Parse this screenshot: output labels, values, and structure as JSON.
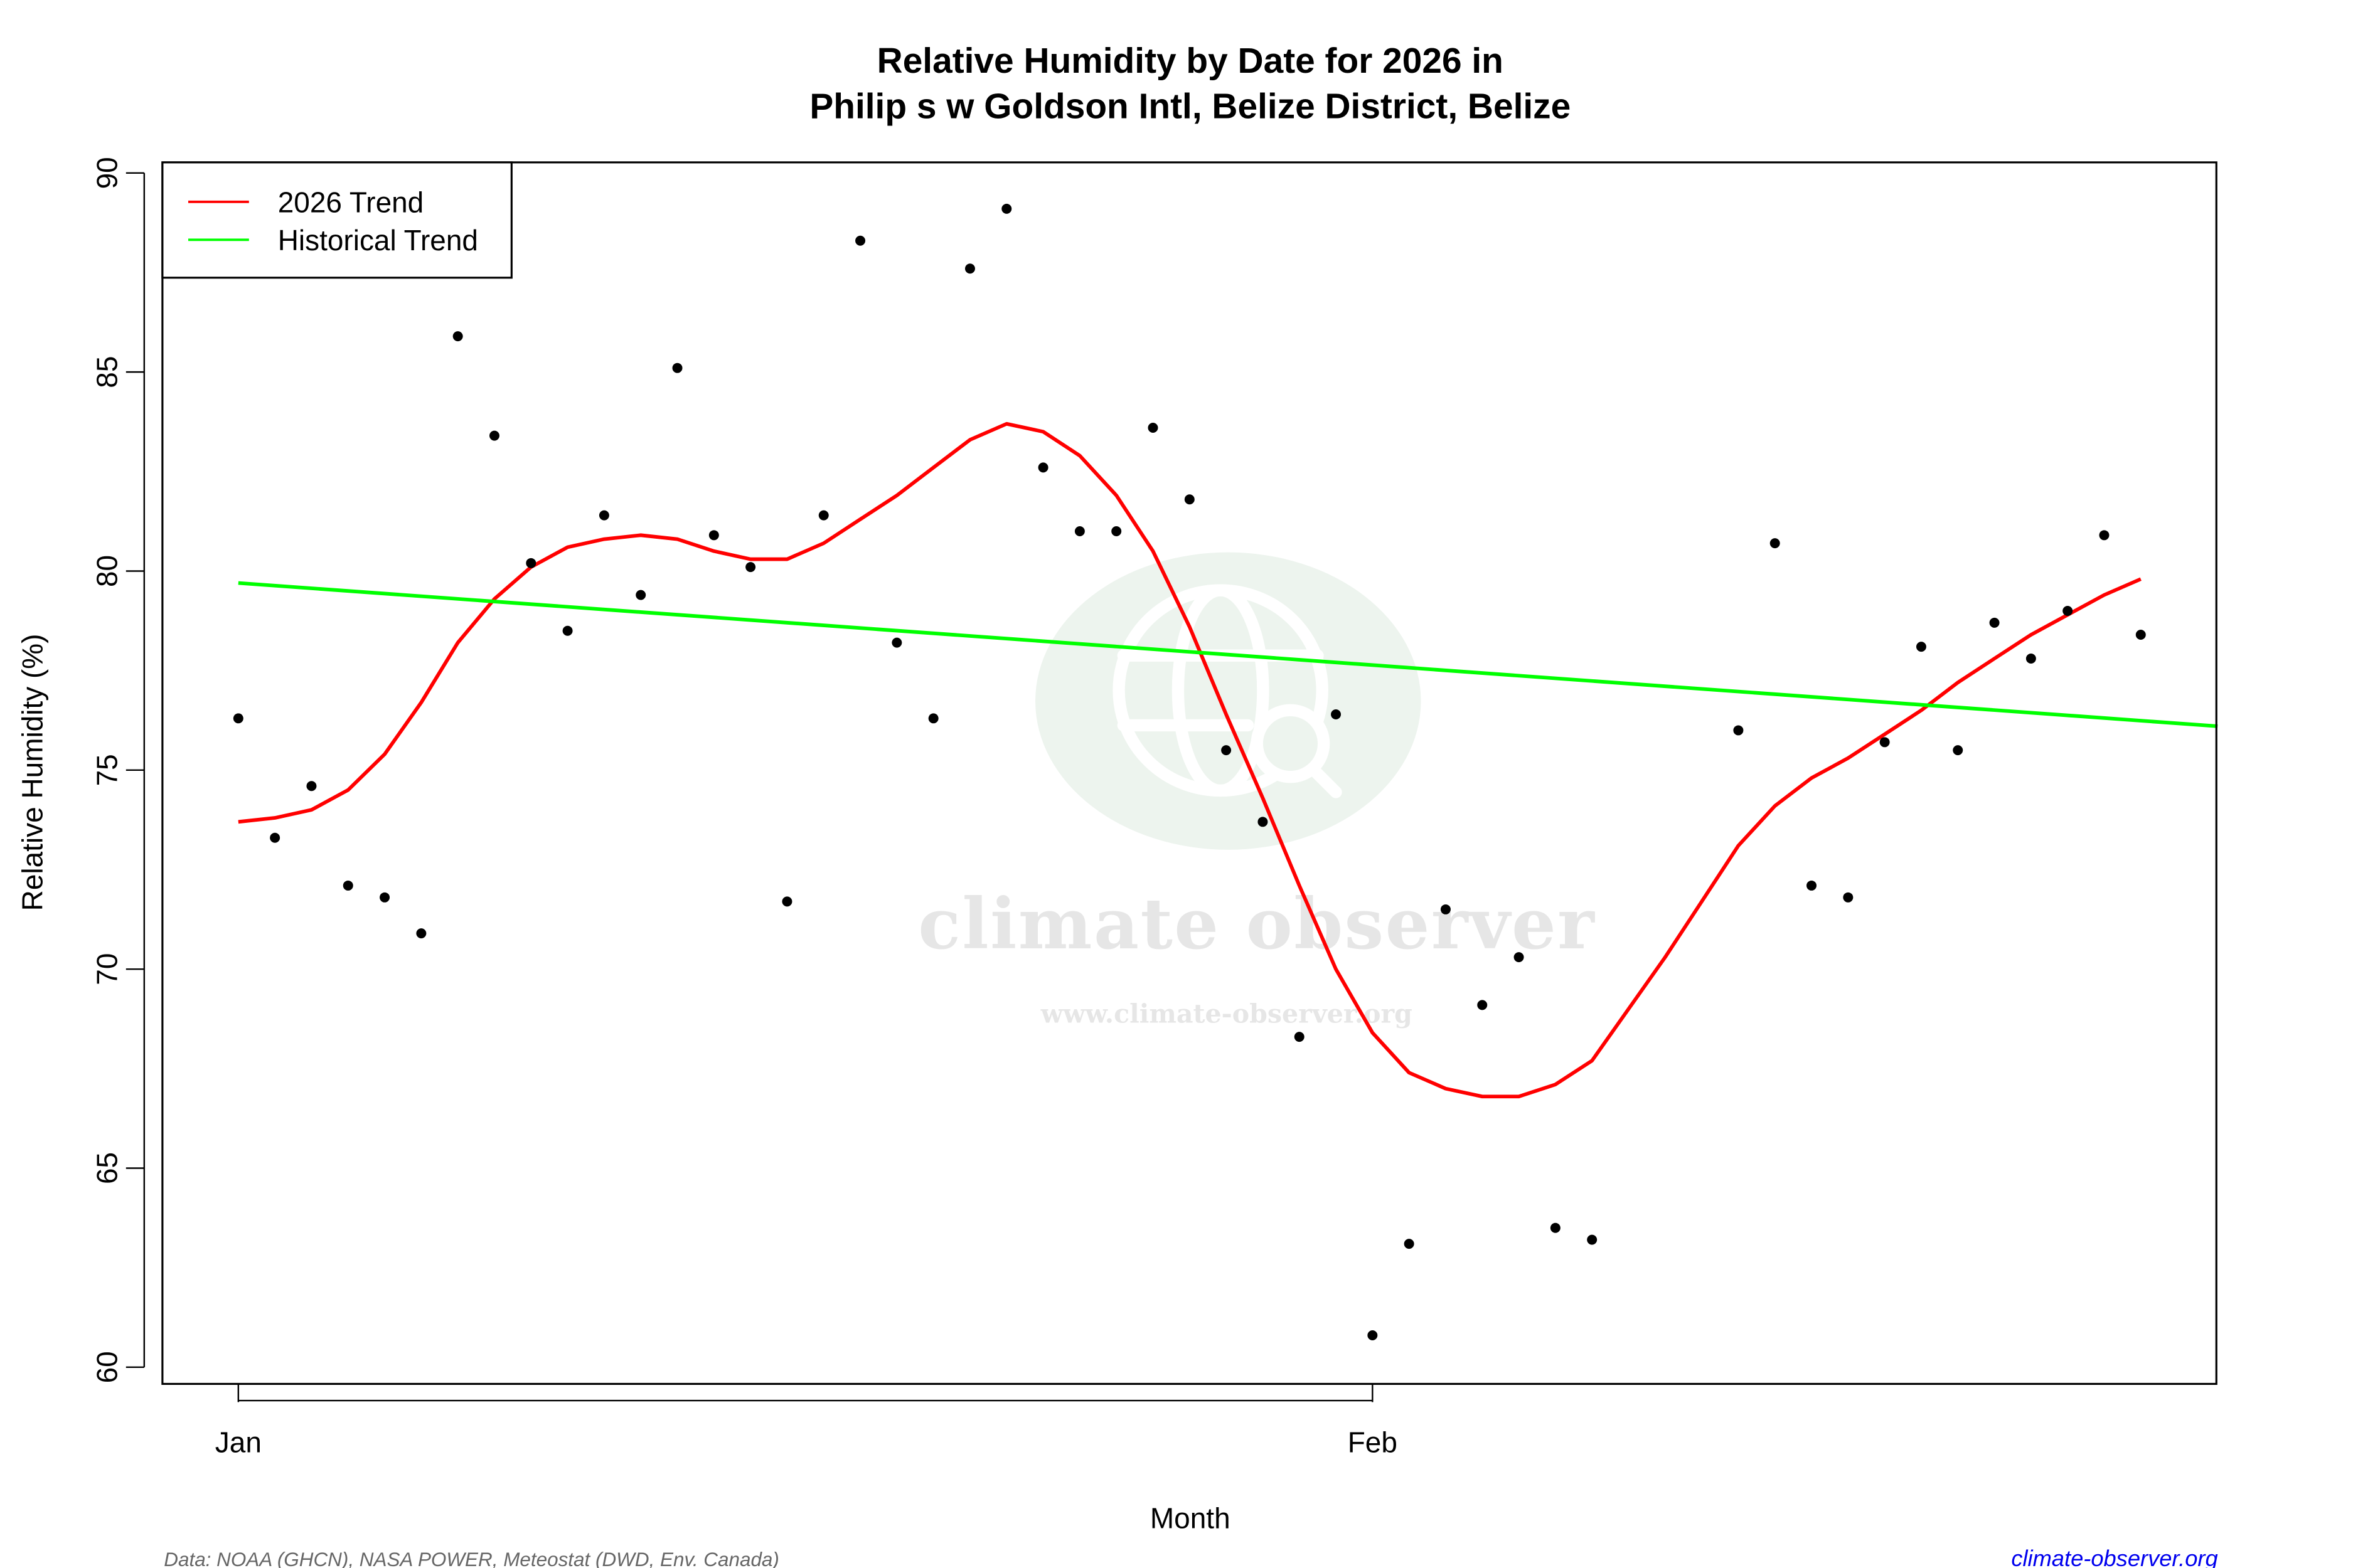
{
  "chart_data": {
    "type": "scatter",
    "title": "Relative Humidity by Date for 2026 in",
    "subtitle": "Philip s w Goldson Intl, Belize District, Belize",
    "xlabel": "Month",
    "ylabel": "Relative Humidity (%)",
    "ylim": [
      60,
      90
    ],
    "yticks": [
      "60",
      "65",
      "70",
      "75",
      "80",
      "85",
      "90"
    ],
    "xticks": [
      {
        "label": "Jan",
        "day": 1
      },
      {
        "label": "Feb",
        "day": 32
      }
    ],
    "grid": false,
    "legend_position": "top-left",
    "legend": [
      {
        "label": "2026 Trend",
        "color": "#ff0000"
      },
      {
        "label": "Historical Trend",
        "color": "#00ff00"
      }
    ],
    "series": [
      {
        "name": "Daily Relative Humidity",
        "kind": "points",
        "color": "#000000",
        "x_day_of_year": [
          1,
          2,
          3,
          4,
          5,
          6,
          7,
          8,
          9,
          10,
          11,
          12,
          13,
          14,
          15,
          16,
          17,
          18,
          19,
          20,
          21,
          22,
          23,
          24,
          25,
          26,
          27,
          28,
          29,
          30,
          31,
          32,
          33,
          34,
          35,
          36,
          37,
          38,
          42,
          43,
          44,
          45,
          46,
          47,
          48,
          49,
          50,
          51,
          52,
          53
        ],
        "values": [
          76.3,
          73.3,
          74.6,
          72.1,
          71.8,
          70.9,
          85.9,
          83.4,
          80.2,
          78.5,
          81.4,
          79.4,
          85.1,
          80.9,
          80.1,
          71.7,
          81.4,
          88.3,
          78.2,
          76.3,
          87.6,
          89.1,
          82.6,
          81.0,
          81.0,
          83.6,
          81.8,
          75.5,
          73.7,
          68.3,
          76.4,
          60.8,
          63.1,
          71.5,
          69.1,
          70.3,
          63.5,
          63.2,
          76.0,
          80.7,
          72.1,
          71.8,
          75.7,
          78.1,
          75.5,
          78.7,
          77.8,
          79.0,
          80.9,
          78.4
        ]
      },
      {
        "name": "2026 Trend",
        "kind": "line",
        "color": "#ff0000",
        "x_day_of_year": [
          1,
          2,
          3,
          4,
          5,
          6,
          7,
          8,
          9,
          10,
          11,
          12,
          13,
          14,
          15,
          16,
          17,
          18,
          19,
          20,
          21,
          22,
          23,
          24,
          25,
          26,
          27,
          28,
          29,
          30,
          31,
          32,
          33,
          34,
          35,
          36,
          37,
          38,
          39,
          40,
          41,
          42,
          43,
          44,
          45,
          46,
          47,
          48,
          49,
          50,
          51,
          52,
          53
        ],
        "values": [
          73.7,
          73.8,
          74.0,
          74.5,
          75.4,
          76.7,
          78.2,
          79.3,
          80.1,
          80.6,
          80.8,
          80.9,
          80.8,
          80.5,
          80.3,
          80.3,
          80.7,
          81.3,
          81.9,
          82.6,
          83.3,
          83.7,
          83.5,
          82.9,
          81.9,
          80.5,
          78.6,
          76.4,
          74.3,
          72.1,
          70.0,
          68.4,
          67.4,
          67.0,
          66.8,
          66.8,
          67.1,
          67.7,
          69.0,
          70.3,
          71.7,
          73.1,
          74.1,
          74.8,
          75.3,
          75.9,
          76.5,
          77.2,
          77.8,
          78.4,
          78.9,
          79.4,
          79.8
        ]
      },
      {
        "name": "Historical Trend",
        "kind": "line",
        "color": "#00ff00",
        "x_day_of_year": [
          1,
          55.1
        ],
        "values": [
          79.7,
          76.1
        ]
      }
    ]
  },
  "footer": {
    "source": "Data: NOAA (GHCN), NASA POWER, Meteostat (DWD, Env. Canada)",
    "site": "climate-observer.org"
  },
  "watermark": {
    "brand": "climate observer",
    "url": "www.climate-observer.org",
    "icon": "globe-search-icon"
  }
}
